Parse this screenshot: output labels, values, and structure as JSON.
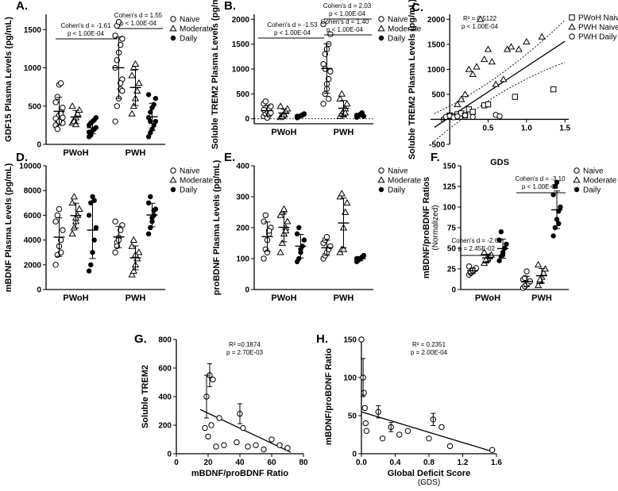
{
  "chart_data": [
    {
      "id": "A",
      "panel_label": "A.",
      "type": "scatter",
      "ylabel": "GDF15 Plasma Levels (pg/mL)",
      "ylim": [
        0,
        1700
      ],
      "yticks": [
        0,
        500,
        1000,
        1500
      ],
      "groups": [
        "PWoH",
        "PWH"
      ],
      "legend": [
        "Naive",
        "Moderate",
        "Daily"
      ],
      "series": [
        {
          "name": "Naive",
          "values": [
            [
              250,
              320,
              380,
              420,
              480,
              550,
              620,
              780,
              800,
              280,
              340,
              200,
              300,
              400,
              350
            ],
            [
              300,
              500,
              600,
              720,
              850,
              1000,
              1100,
              1200,
              1300,
              1380,
              1420,
              1550,
              1600,
              800,
              700
            ]
          ]
        },
        {
          "name": "Moderate",
          "values": [
            [
              280,
              320,
              350,
              400,
              450,
              500,
              300,
              260
            ],
            [
              400,
              500,
              600,
              700,
              800,
              900,
              1000,
              1050
            ]
          ]
        },
        {
          "name": "Daily",
          "values": [
            [
              100,
              150,
              180,
              200,
              220,
              250,
              280,
              300,
              320,
              350,
              160,
              120
            ],
            [
              100,
              150,
              200,
              250,
              300,
              350,
              420,
              480,
              520,
              600,
              650,
              300
            ]
          ]
        }
      ],
      "annotations": [
        {
          "text": "Cohen's d = -1.61",
          "text2": "p < 1.00E-04"
        },
        {
          "text": "Cohen's d = 1.55",
          "text2": "p < 1.00E-04"
        }
      ]
    },
    {
      "id": "B",
      "panel_label": "B.",
      "type": "scatter",
      "ylabel": "Soluble TREM2 Plasma Levels (pg/mL)",
      "ylim": [
        -100,
        2100
      ],
      "yticks": [
        0,
        500,
        1000,
        1500,
        2000
      ],
      "groups": [
        "PWoH",
        "PWH"
      ],
      "legend": [
        "Naive",
        "Moderate",
        "Daily"
      ],
      "series": [
        {
          "name": "Naive",
          "values": [
            [
              50,
              100,
              150,
              200,
              250,
              300,
              350,
              20,
              80,
              120,
              180
            ],
            [
              300,
              500,
              600,
              800,
              950,
              1100,
              1300,
              1400,
              1500,
              1700,
              1900,
              1000,
              700,
              400
            ]
          ]
        },
        {
          "name": "Moderate",
          "values": [
            [
              30,
              60,
              100,
              150,
              200,
              250,
              50,
              80
            ],
            [
              50,
              100,
              150,
              200,
              300,
              400,
              500,
              80,
              120
            ]
          ]
        },
        {
          "name": "Daily",
          "values": [
            [
              20,
              40,
              60,
              80,
              100,
              50
            ],
            [
              30,
              60,
              90,
              120,
              50,
              70
            ]
          ]
        }
      ],
      "annotations": [
        {
          "text": "Cohen's d = -1.53",
          "text2": "p < 1.00E-04"
        },
        {
          "text": "Cohen's d = 2.03",
          "text2": "p < 1.00E-04"
        },
        {
          "text": "Cohen's d = 1.40",
          "text2": "p < 1.00E-04"
        }
      ]
    },
    {
      "id": "C",
      "panel_label": "C.",
      "type": "scatter",
      "xlabel": "GDS",
      "ylabel": "Soluble TREM2 Plasma Levels (pg/mL)",
      "xlim": [
        -0.25,
        1.55
      ],
      "ylim": [
        -500,
        2100
      ],
      "xticks": [
        0.5,
        1.0,
        1.5
      ],
      "yticks": [
        -500,
        0,
        500,
        1000,
        1500,
        2000
      ],
      "stats": [
        "R² = 0.5122",
        "p < 1.00E-04"
      ],
      "legend": [
        "PWoH Naive",
        "PWH Naive",
        "PWH Daily"
      ],
      "series": [
        {
          "name": "PWoH Naive",
          "points": [
            [
              0,
              80
            ],
            [
              0.05,
              60
            ],
            [
              0.1,
              100
            ],
            [
              0.15,
              120
            ],
            [
              0.2,
              80
            ],
            [
              0.25,
              200
            ],
            [
              0.3,
              150
            ],
            [
              0.45,
              280
            ],
            [
              0.5,
              300
            ],
            [
              0.85,
              450
            ],
            [
              1.35,
              600
            ]
          ]
        },
        {
          "name": "PWH Naive",
          "points": [
            [
              0.1,
              300
            ],
            [
              0.15,
              400
            ],
            [
              0.2,
              500
            ],
            [
              0.3,
              900
            ],
            [
              0.35,
              1050
            ],
            [
              0.45,
              1200
            ],
            [
              0.5,
              1400
            ],
            [
              0.55,
              1150
            ],
            [
              0.6,
              700
            ],
            [
              0.7,
              800
            ],
            [
              0.75,
              1400
            ],
            [
              0.8,
              1450
            ],
            [
              0.9,
              1400
            ],
            [
              1.0,
              1550
            ],
            [
              1.2,
              1650
            ],
            [
              0.4,
              2000
            ],
            [
              0.25,
              1000
            ]
          ]
        },
        {
          "name": "PWH Daily",
          "points": [
            [
              -0.05,
              50
            ],
            [
              0,
              70
            ],
            [
              0.05,
              40
            ],
            [
              0.1,
              60
            ],
            [
              0.2,
              80
            ],
            [
              0.3,
              50
            ],
            [
              0.6,
              90
            ],
            [
              0.65,
              60
            ]
          ]
        }
      ],
      "fit": {
        "x": [
          -0.2,
          1.5
        ],
        "y": [
          -160,
          1560
        ]
      }
    },
    {
      "id": "D",
      "panel_label": "D.",
      "type": "scatter",
      "ylabel": "mBDNF Plasma Levels (pg/mL)",
      "ylim": [
        0,
        10000
      ],
      "yticks": [
        0,
        2000,
        4000,
        6000,
        8000,
        10000
      ],
      "groups": [
        "PWoH",
        "PWH"
      ],
      "legend": [
        "Naive",
        "Moderate",
        "Daily"
      ],
      "series": [
        {
          "name": "Naive",
          "values": [
            [
              2000,
              2800,
              3500,
              4000,
              4800,
              5500,
              6000,
              6500,
              3000
            ],
            [
              3000,
              3800,
              4200,
              4800,
              5200,
              5500,
              3500,
              4000
            ]
          ]
        },
        {
          "name": "Moderate",
          "values": [
            [
              4500,
              5000,
              5500,
              6000,
              6500,
              7000,
              7500,
              5800
            ],
            [
              1200,
              1500,
              2000,
              2500,
              3000,
              3500,
              4000,
              2800
            ]
          ]
        },
        {
          "name": "Daily",
          "values": [
            [
              1500,
              2000,
              3000,
              4000,
              5000,
              6000,
              7000,
              7500,
              7200
            ],
            [
              4500,
              5000,
              5500,
              6000,
              6500,
              7000,
              7500,
              5800,
              6400
            ]
          ]
        }
      ]
    },
    {
      "id": "E",
      "panel_label": "E.",
      "type": "scatter",
      "ylabel": "proBDNF Plasma Levels (pg/mL)",
      "ylim": [
        0,
        400
      ],
      "yticks": [
        0,
        100,
        200,
        300,
        400
      ],
      "groups": [
        "PWoH",
        "PWH"
      ],
      "legend": [
        "Naive",
        "Moderate",
        "Daily"
      ],
      "series": [
        {
          "name": "Naive",
          "values": [
            [
              100,
              130,
              160,
              180,
              200,
              220,
              240,
              120,
              190
            ],
            [
              100,
              110,
              120,
              130,
              140,
              150,
              160,
              170
            ]
          ]
        },
        {
          "name": "Moderate",
          "values": [
            [
              120,
              150,
              180,
              200,
              220,
              240,
              250,
              260,
              190
            ],
            [
              120,
              130,
              200,
              250,
              280,
              300,
              310,
              130
            ]
          ]
        },
        {
          "name": "Daily",
          "values": [
            [
              90,
              100,
              120,
              140,
              160,
              180,
              200,
              130
            ],
            [
              90,
              95,
              100,
              105,
              110,
              100,
              98
            ]
          ]
        }
      ]
    },
    {
      "id": "F",
      "panel_label": "F.",
      "type": "scatter",
      "ylabel": "mBDNF/proBDNF Ratios",
      "ylabel2": "(Normalized)",
      "ylim": [
        0,
        150
      ],
      "yticks": [
        0,
        25,
        50,
        75,
        100,
        125,
        150
      ],
      "groups": [
        "PWoH",
        "PWH"
      ],
      "legend": [
        "Naive",
        "Moderate",
        "Daily"
      ],
      "series": [
        {
          "name": "Naive",
          "values": [
            [
              18,
              20,
              22,
              24,
              26,
              28,
              21,
              23
            ],
            [
              2,
              4,
              6,
              8,
              10,
              12,
              14,
              22
            ]
          ]
        },
        {
          "name": "Moderate",
          "values": [
            [
              32,
              35,
              38,
              40,
              42,
              45,
              36
            ],
            [
              5,
              10,
              15,
              20,
              25,
              30,
              12
            ]
          ]
        },
        {
          "name": "Daily",
          "values": [
            [
              35,
              40,
              45,
              50,
              55,
              60,
              70,
              42
            ],
            [
              65,
              75,
              85,
              95,
              100,
              115,
              125,
              130,
              80
            ]
          ]
        }
      ],
      "annotations": [
        {
          "text": "Cohen's d = -2.61",
          "text2": "p = 2.45E-02"
        },
        {
          "text": "Cohen's d = -3.10",
          "text2": "p < 1.00E-04"
        }
      ]
    },
    {
      "id": "G",
      "panel_label": "G.",
      "type": "scatter",
      "xlabel": "mBDNF/proBDNF Ratio",
      "ylabel": "Soluble TREM2",
      "xlim": [
        0,
        80
      ],
      "ylim": [
        0,
        800
      ],
      "xticks": [
        0,
        20,
        40,
        60,
        80
      ],
      "yticks": [
        0,
        200,
        400,
        600,
        800
      ],
      "stats": [
        "R² =0.1874",
        "p = 2.70E-03"
      ],
      "points": [
        [
          18,
          180
        ],
        [
          19,
          400
        ],
        [
          20,
          120
        ],
        [
          21,
          550
        ],
        [
          22,
          200
        ],
        [
          23,
          520
        ],
        [
          25,
          50
        ],
        [
          27,
          250
        ],
        [
          30,
          60
        ],
        [
          38,
          80
        ],
        [
          40,
          280
        ],
        [
          42,
          180
        ],
        [
          45,
          50
        ],
        [
          50,
          60
        ],
        [
          55,
          30
        ],
        [
          60,
          100
        ],
        [
          65,
          60
        ],
        [
          70,
          40
        ]
      ],
      "errorbars": [
        [
          21,
          550,
          80
        ],
        [
          19,
          400,
          150
        ],
        [
          40,
          280,
          70
        ]
      ],
      "fit": {
        "x": [
          15,
          72
        ],
        "y": [
          310,
          10
        ]
      }
    },
    {
      "id": "H",
      "panel_label": "H.",
      "type": "scatter",
      "xlabel": "Global Deficit Score",
      "xlabel2": "(GDS)",
      "ylabel": "mBDNF/proBDNF Ratio",
      "xlim": [
        0,
        1.6
      ],
      "ylim": [
        0,
        150
      ],
      "xticks": [
        0.0,
        0.4,
        0.8,
        1.2,
        1.6
      ],
      "yticks": [
        0,
        50,
        100,
        150
      ],
      "stats": [
        "R² = 0.2351",
        "p = 2.00E-04"
      ],
      "points": [
        [
          0,
          150
        ],
        [
          0.02,
          100
        ],
        [
          0.03,
          80
        ],
        [
          0.04,
          60
        ],
        [
          0.05,
          40
        ],
        [
          0.06,
          30
        ],
        [
          0.2,
          55
        ],
        [
          0.25,
          20
        ],
        [
          0.35,
          35
        ],
        [
          0.45,
          25
        ],
        [
          0.55,
          30
        ],
        [
          0.8,
          20
        ],
        [
          0.85,
          45
        ],
        [
          0.95,
          35
        ],
        [
          1.05,
          10
        ],
        [
          1.55,
          5
        ]
      ],
      "errorbars": [
        [
          0.02,
          100,
          25
        ],
        [
          0.2,
          55,
          8
        ],
        [
          0.85,
          45,
          8
        ],
        [
          0.35,
          35,
          6
        ]
      ],
      "fit": {
        "x": [
          0,
          1.55
        ],
        "y": [
          55,
          3
        ]
      }
    }
  ]
}
